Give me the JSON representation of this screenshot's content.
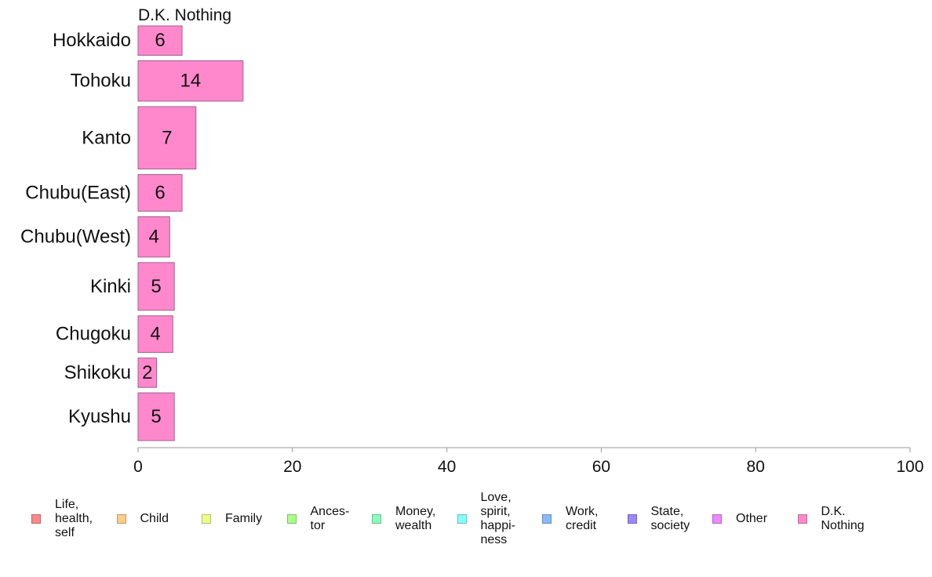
{
  "chart_data": {
    "type": "bar",
    "orientation": "horizontal",
    "panel_title": "D.K. Nothing",
    "categories": [
      "Hokkaido",
      "Tohoku",
      "Kanto",
      "Chubu(East)",
      "Chubu(West)",
      "Kinki",
      "Chugoku",
      "Shikoku",
      "Kyushu"
    ],
    "values": [
      5.7,
      13.6,
      7.5,
      5.7,
      4.1,
      4.7,
      4.5,
      2.4,
      4.7
    ],
    "value_labels": [
      "6",
      "14",
      "7",
      "6",
      "4",
      "5",
      "4",
      "2",
      "5"
    ],
    "row_weights": [
      0.8,
      1.1,
      1.7,
      1.0,
      1.1,
      1.3,
      1.0,
      0.8,
      1.3
    ],
    "bar_color": "#ff88cc",
    "xlim": [
      0,
      100
    ],
    "xticks": [
      "0",
      "20",
      "40",
      "60",
      "80",
      "100"
    ],
    "xtick_values": [
      0,
      20,
      40,
      60,
      80,
      100
    ],
    "grid": false,
    "legend_position": "bottom",
    "legend": [
      {
        "label": "Life,\nhealth,\nself",
        "color": "#ff8888"
      },
      {
        "label": "Child",
        "color": "#ffcc88"
      },
      {
        "label": "Family",
        "color": "#eeff88"
      },
      {
        "label": "Ances-\ntor",
        "color": "#aaff88"
      },
      {
        "label": "Money,\nwealth",
        "color": "#88ffbb"
      },
      {
        "label": "Love,\nspirit,\nhappi-\nness",
        "color": "#88ffff"
      },
      {
        "label": "Work,\ncredit",
        "color": "#88bbff"
      },
      {
        "label": "State,\nsociety",
        "color": "#9988ff"
      },
      {
        "label": "Other",
        "color": "#ee88ff"
      },
      {
        "label": "D.K.\nNothing",
        "color": "#ff88cc"
      }
    ]
  }
}
